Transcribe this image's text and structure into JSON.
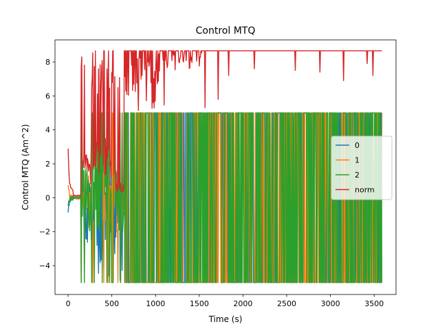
{
  "chart_data": {
    "type": "line",
    "title": "Control MTQ",
    "xlabel": "Time (s)",
    "ylabel": "Control MTQ (Am^2)",
    "xlim": [
      -150,
      3750
    ],
    "ylim": [
      -5.7,
      9.3
    ],
    "xticks": [
      0,
      500,
      1000,
      1500,
      2000,
      2500,
      3000,
      3500
    ],
    "yticks": [
      -4,
      -2,
      0,
      2,
      4,
      6,
      8
    ],
    "grid": false,
    "legend_position": "center-right",
    "x_end": 3590,
    "series": [
      {
        "name": "0",
        "color": "#1f77b4",
        "saturation": 5.0
      },
      {
        "name": "1",
        "color": "#ff7f0e",
        "saturation": 5.0
      },
      {
        "name": "2",
        "color": "#2ca02c",
        "saturation": 5.0
      },
      {
        "name": "norm",
        "color": "#d62728",
        "max": 8.66
      }
    ],
    "norm_dips": [
      {
        "x": 1570,
        "y": 5.3
      },
      {
        "x": 1720,
        "y": 5.8
      },
      {
        "x": 1840,
        "y": 7.2
      },
      {
        "x": 2130,
        "y": 7.6
      },
      {
        "x": 2600,
        "y": 7.5
      },
      {
        "x": 2880,
        "y": 7.4
      },
      {
        "x": 3150,
        "y": 6.9
      },
      {
        "x": 3420,
        "y": 7.9
      },
      {
        "x": 3490,
        "y": 7.2
      }
    ]
  }
}
